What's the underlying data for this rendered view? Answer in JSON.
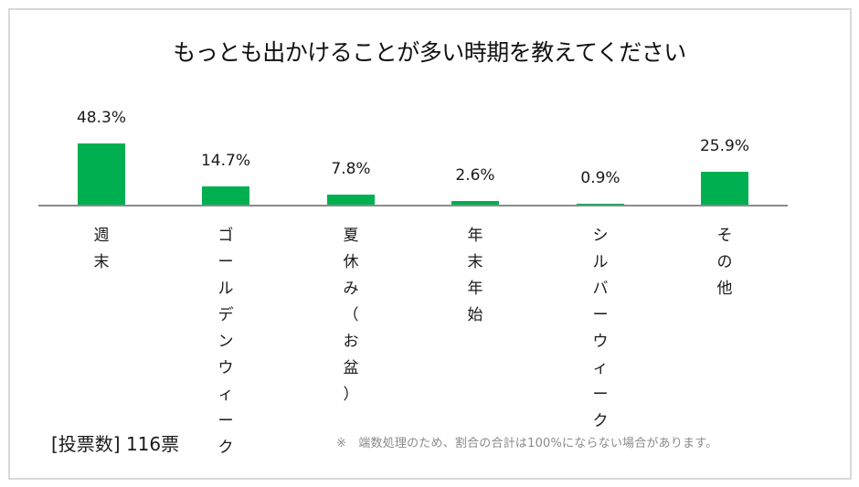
{
  "slide": {
    "title": "もっとも出かけることが多い時期を教えてください",
    "votes_label": "[投票数] 116票",
    "footnote": "※　端数処理のため、割合の合計は100%にならない場合があります。",
    "colors": {
      "bar": "#00b050",
      "axis": "#8c8c8c",
      "border": "#d9d9d9",
      "footnote": "#8a8a8a"
    }
  },
  "chart_data": {
    "type": "bar",
    "title": "もっとも出かけることが多い時期を教えてください",
    "xlabel": "",
    "ylabel": "",
    "categories": [
      "週末",
      "ゴールデンウィーク",
      "夏休み（お盆）",
      "年末年始",
      "シルバーウィーク",
      "その他"
    ],
    "values": [
      48.3,
      14.7,
      7.8,
      2.6,
      0.9,
      25.9
    ],
    "value_labels": [
      "48.3%",
      "14.7%",
      "7.8%",
      "2.6%",
      "0.9%",
      "25.9%"
    ],
    "unit": "%",
    "ylim": [
      0,
      50
    ],
    "grid": false,
    "legend": null,
    "label_orientation": "vertical"
  }
}
